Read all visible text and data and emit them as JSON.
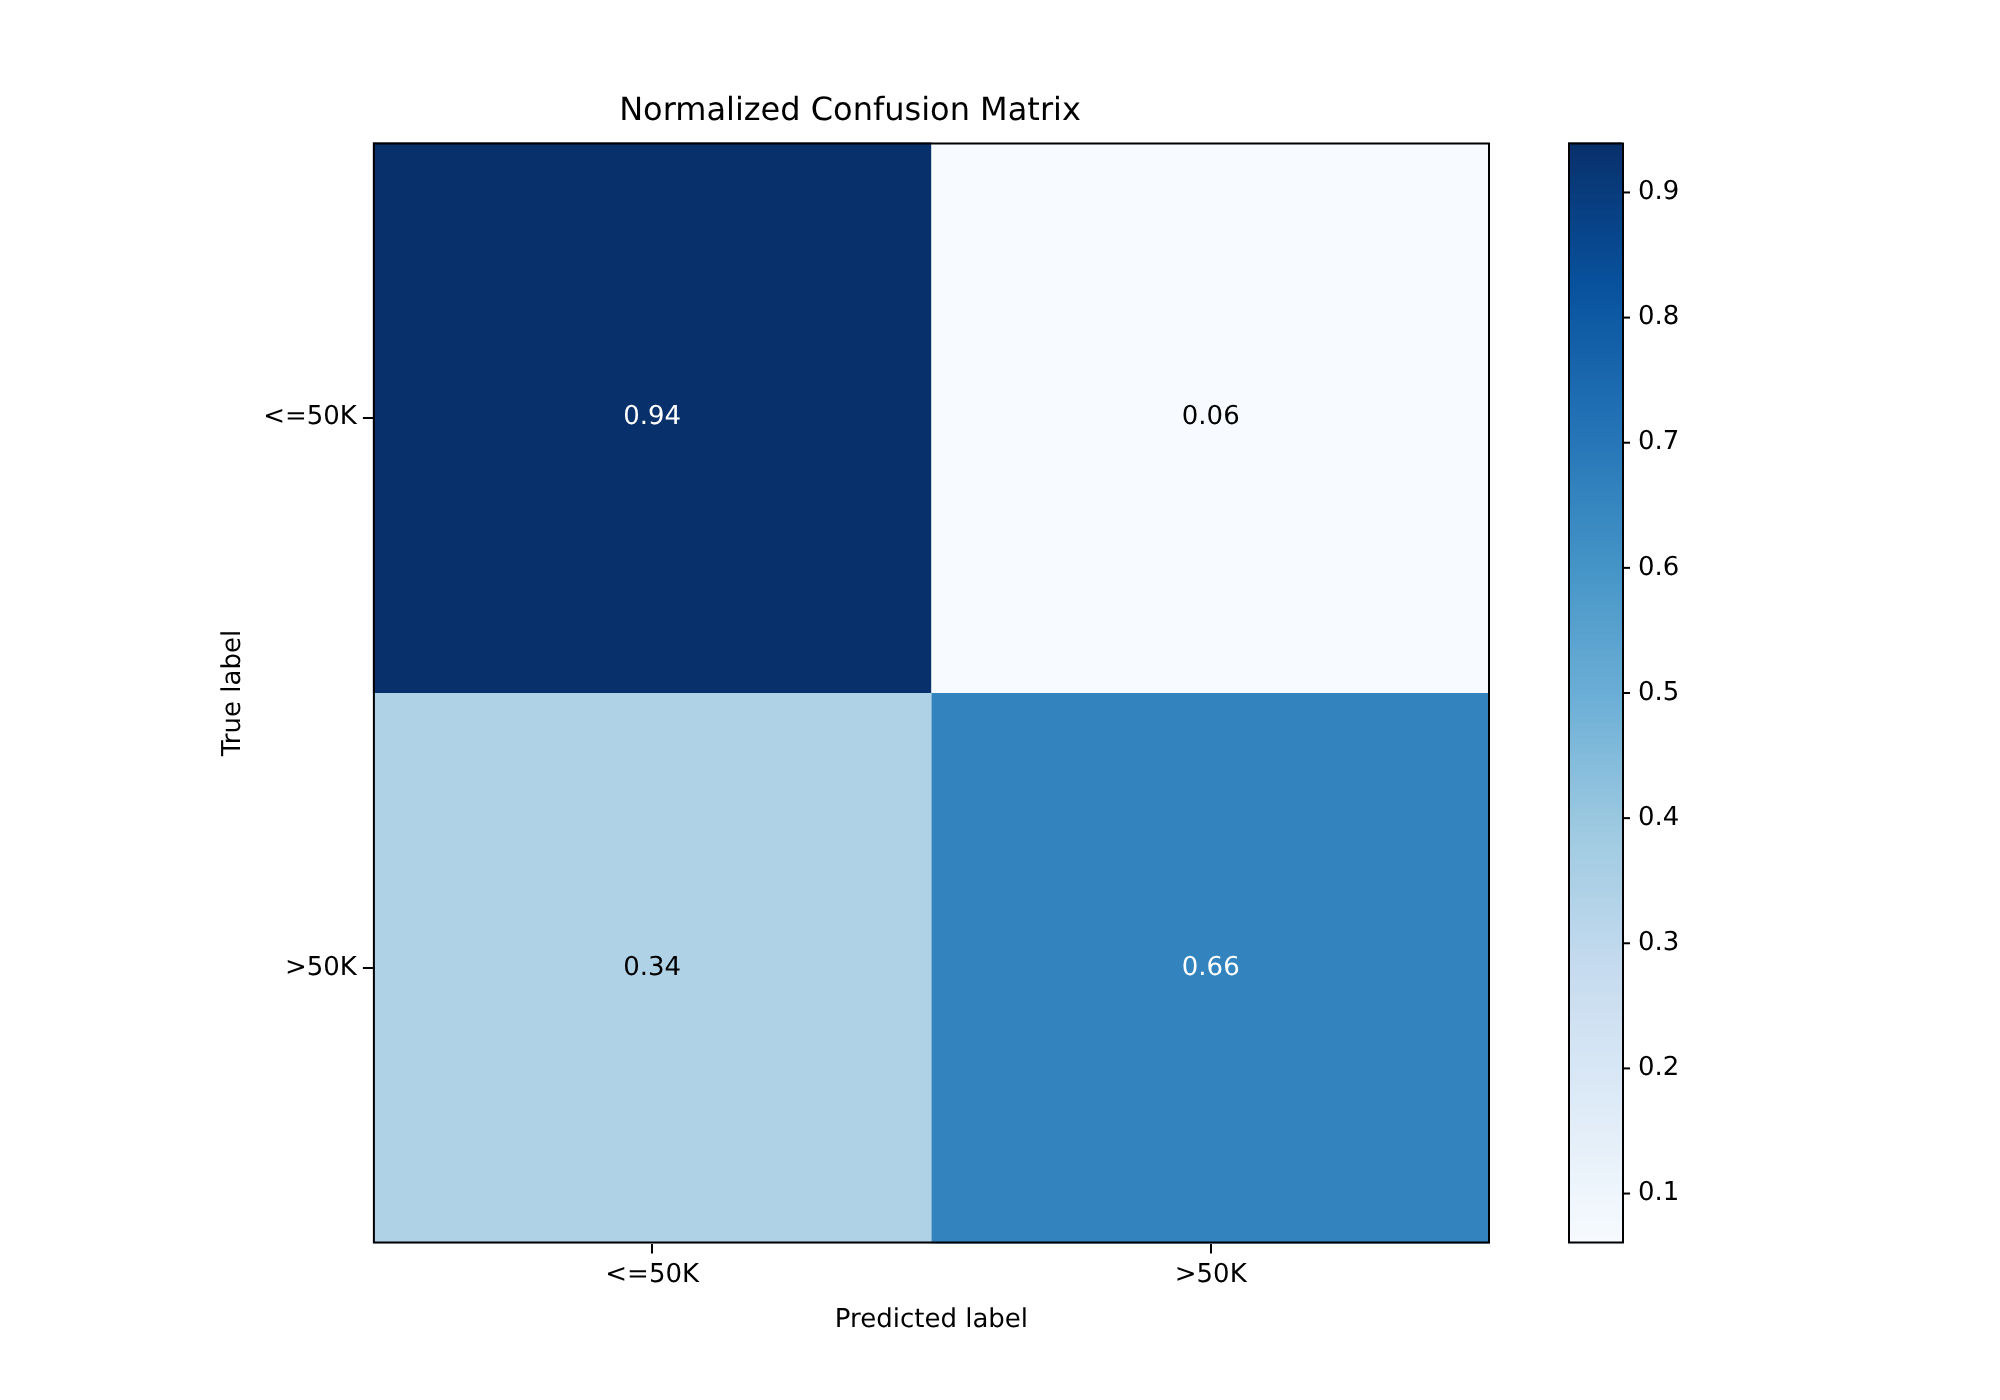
{
  "chart_data": {
    "type": "heatmap",
    "title": "Normalized Confusion Matrix",
    "xlabel": "Predicted label",
    "ylabel": "True label",
    "categories": [
      "<=50K",
      ">50K"
    ],
    "y_categories": [
      "<=50K",
      ">50K"
    ],
    "cells": [
      [
        0.94,
        0.06
      ],
      [
        0.34,
        0.66
      ]
    ],
    "clim": [
      0.06,
      0.94
    ],
    "cticks": [
      0.1,
      0.2,
      0.3,
      0.4,
      0.5,
      0.6,
      0.7,
      0.8,
      0.9
    ],
    "data_labels": true
  }
}
